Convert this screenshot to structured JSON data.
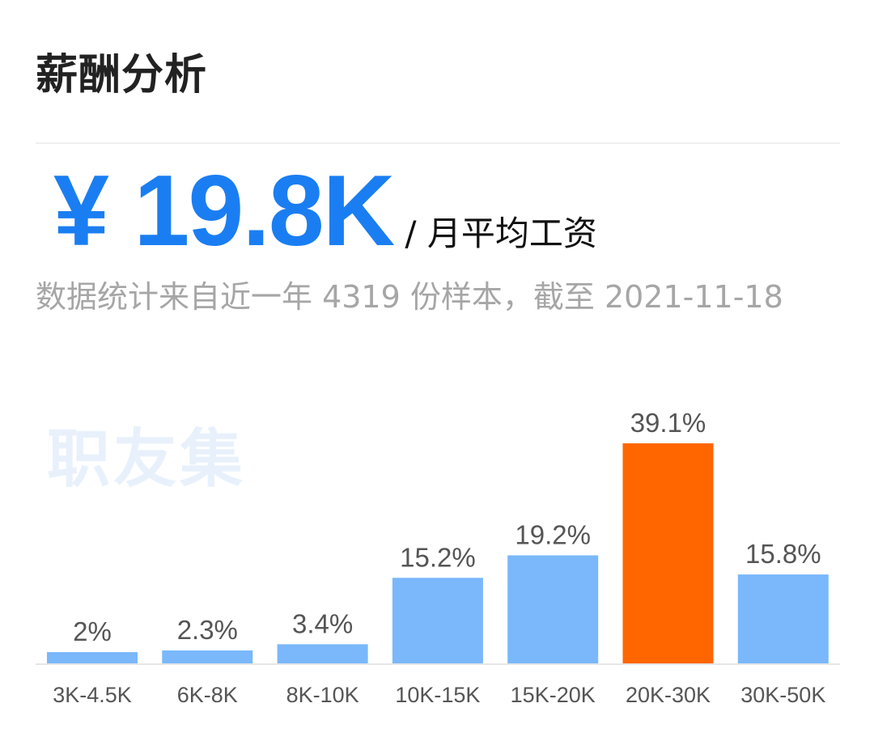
{
  "header": {
    "title": "薪酬分析"
  },
  "summary": {
    "avg_value": "¥ 19.8K",
    "avg_unit": "/ 月平均工资",
    "description": "数据统计来自近一年 4319 份样本，截至 2021-11-18"
  },
  "watermark": "职友集",
  "chart_data": {
    "type": "bar",
    "categories": [
      "3K-4.5K",
      "6K-8K",
      "8K-10K",
      "10K-15K",
      "15K-20K",
      "20K-30K",
      "30K-50K"
    ],
    "values": [
      2,
      2.3,
      3.4,
      15.2,
      19.2,
      39.1,
      15.8
    ],
    "value_labels": [
      "2%",
      "2.3%",
      "3.4%",
      "15.2%",
      "19.2%",
      "39.1%",
      "15.8%"
    ],
    "highlight_index": 5,
    "colors": {
      "bar": "#7ab8fb",
      "highlight": "#ff6600",
      "axis": "#e6e6e6"
    },
    "ylim": [
      0,
      39.1
    ]
  }
}
